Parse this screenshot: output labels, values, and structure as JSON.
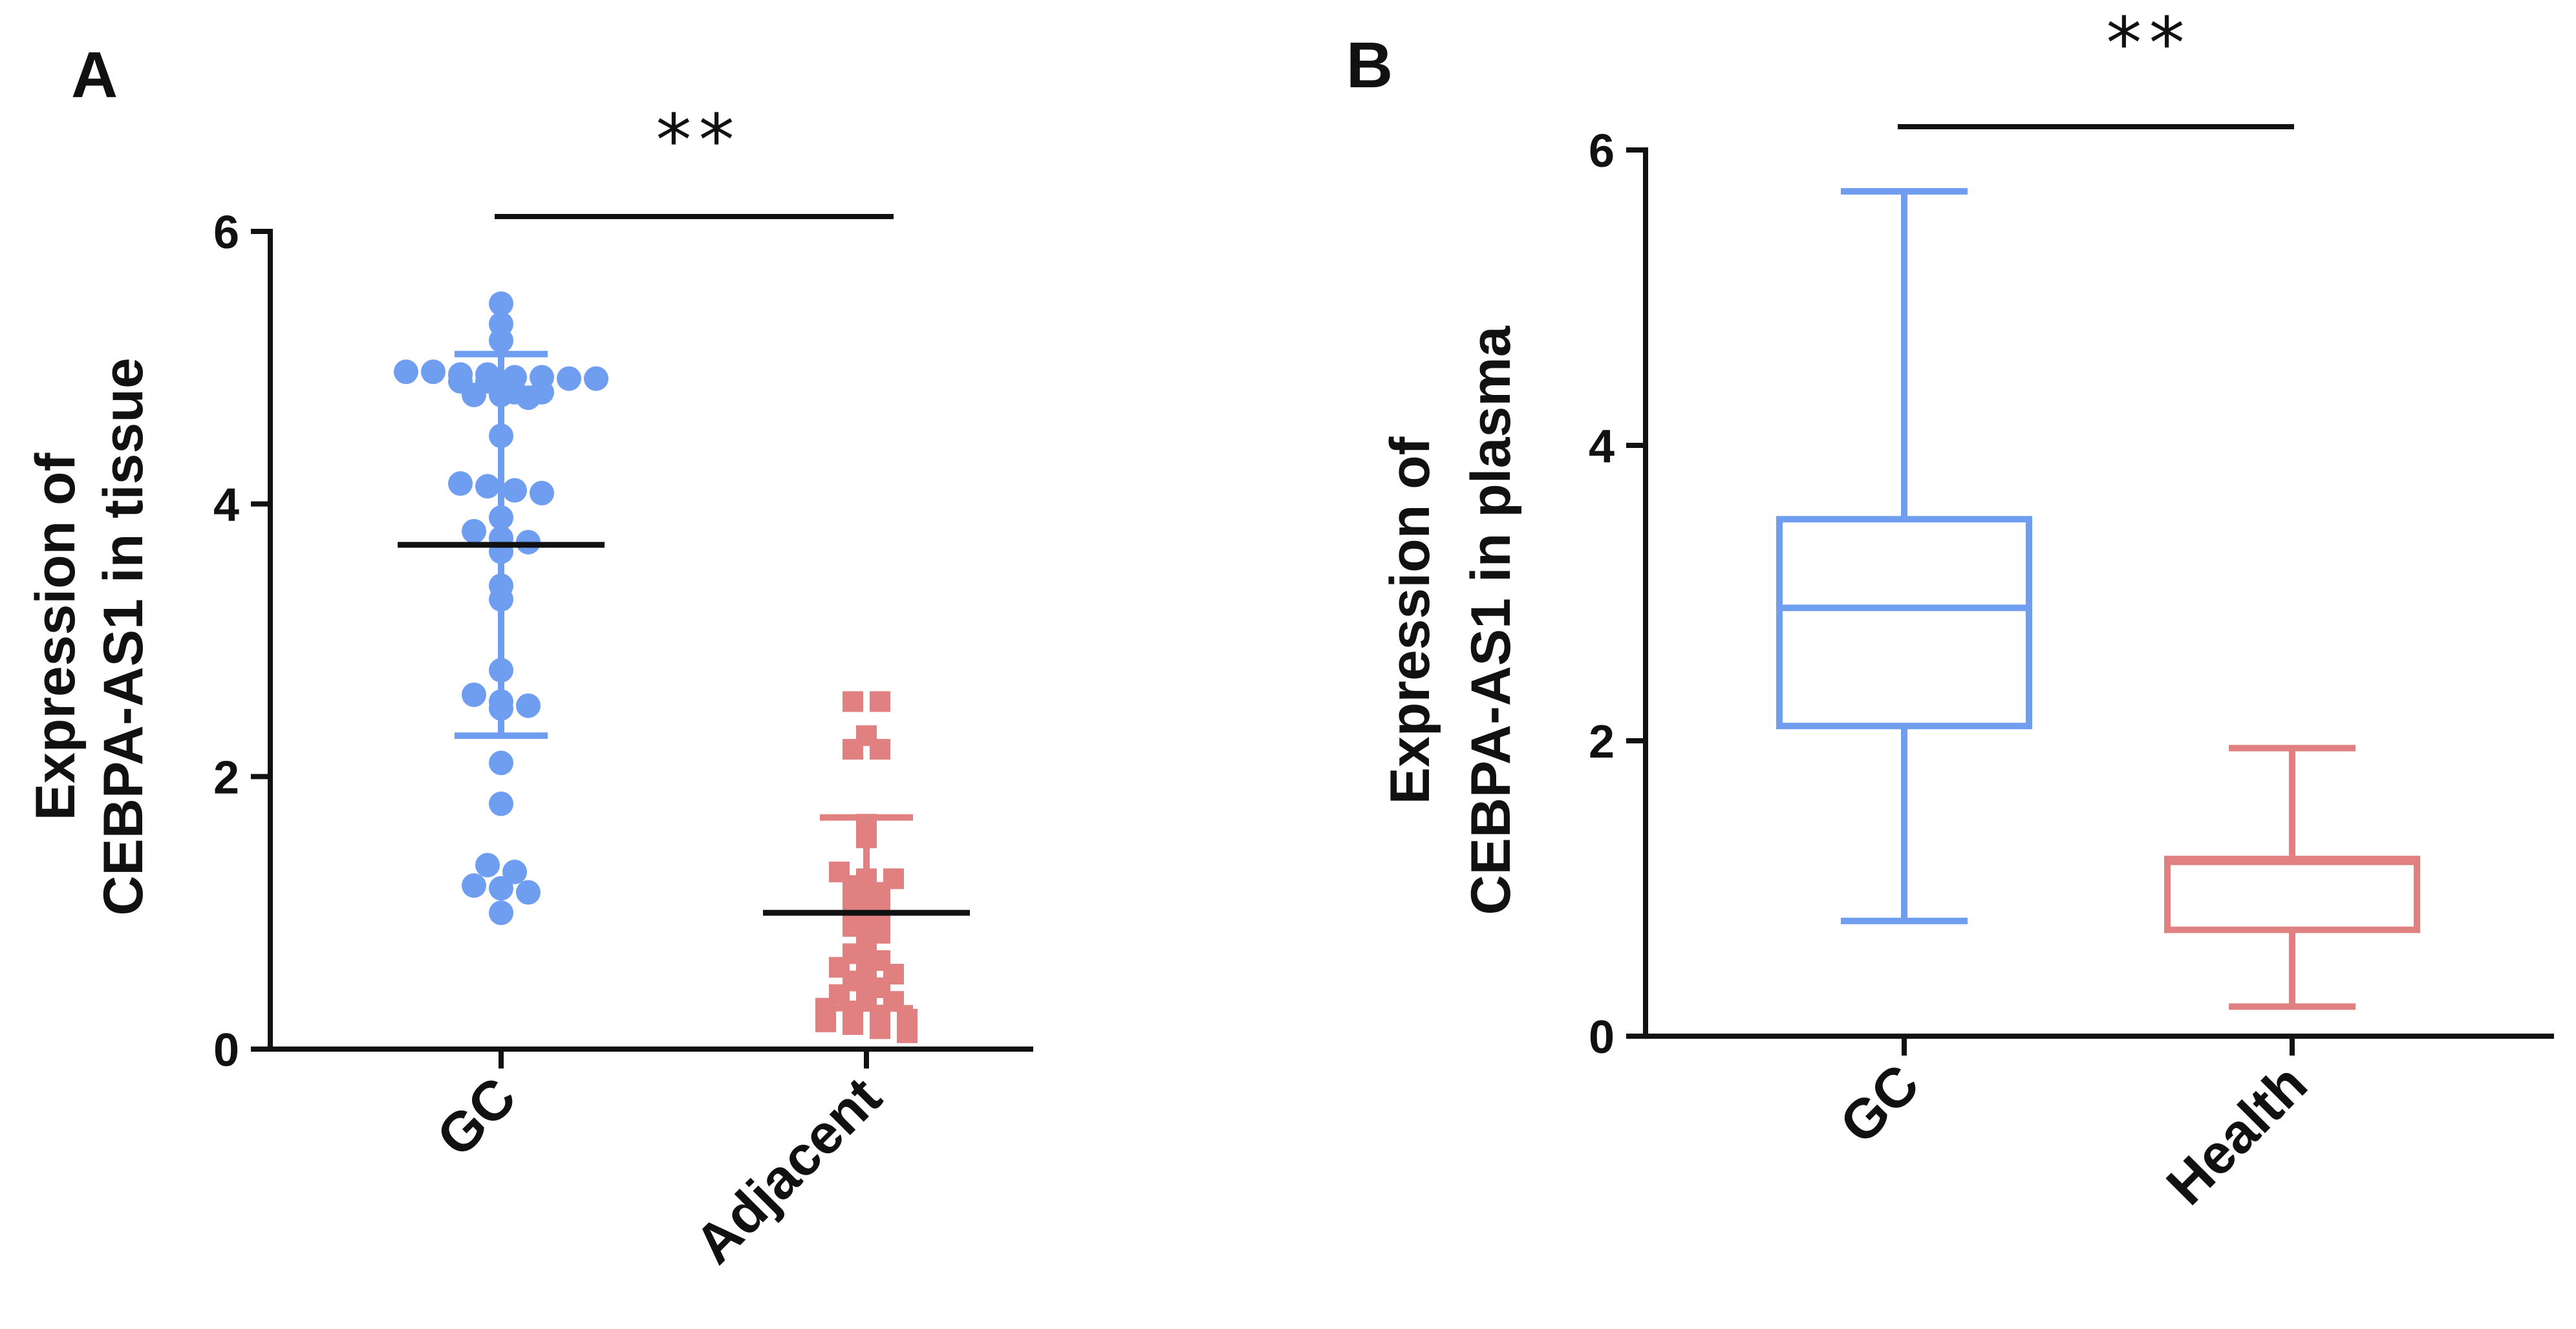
{
  "chart_data": [
    {
      "panel": "A",
      "type": "scatter",
      "ylabel_line1": "Expression of",
      "ylabel_line2": "CEBPA-AS1 in tissue",
      "ylim": [
        0,
        6
      ],
      "yticks": [
        "0",
        "2",
        "4",
        "6"
      ],
      "significance": "**",
      "groups": [
        {
          "name": "GC",
          "color": "#6f9ef0",
          "marker": "circle",
          "mean": 3.7,
          "sd_upper": 5.1,
          "sd_lower": 2.3,
          "values": [
            5.47,
            5.32,
            5.2,
            4.97,
            4.97,
            4.95,
            4.95,
            4.93,
            4.93,
            4.92,
            4.92,
            4.9,
            4.9,
            4.82,
            4.82,
            4.8,
            4.8,
            4.78,
            4.5,
            4.15,
            4.13,
            4.1,
            4.08,
            3.9,
            3.8,
            3.75,
            3.72,
            3.65,
            3.4,
            3.3,
            2.78,
            2.6,
            2.55,
            2.52,
            2.5,
            2.1,
            1.8,
            1.35,
            1.3,
            1.2,
            1.18,
            1.15,
            1.0
          ]
        },
        {
          "name": "Adjacent",
          "color": "#e08080",
          "marker": "square",
          "mean": 1.0,
          "sd_upper": 1.7,
          "sd_lower": 0.3,
          "values": [
            2.55,
            2.55,
            2.3,
            2.2,
            2.2,
            1.65,
            1.55,
            1.3,
            1.25,
            1.25,
            1.2,
            1.15,
            1.1,
            1.05,
            1.0,
            0.95,
            0.9,
            0.85,
            0.8,
            0.7,
            0.65,
            0.6,
            0.55,
            0.55,
            0.5,
            0.45,
            0.4,
            0.35,
            0.35,
            0.3,
            0.28,
            0.25,
            0.22,
            0.2,
            0.18,
            0.15,
            0.12
          ]
        }
      ]
    },
    {
      "panel": "B",
      "type": "box",
      "ylabel_line1": "Expression of",
      "ylabel_line2": "CEBPA-AS1 in plasma",
      "ylim": [
        0,
        6
      ],
      "yticks": [
        "0",
        "2",
        "4",
        "6"
      ],
      "significance": "**",
      "groups": [
        {
          "name": "GC",
          "color": "#6f9ef0",
          "min": 0.78,
          "q1": 2.1,
          "median": 2.9,
          "q3": 3.5,
          "max": 5.72
        },
        {
          "name": "Health",
          "color": "#e08080",
          "min": 0.2,
          "q1": 0.72,
          "median": 1.18,
          "q3": 1.2,
          "max": 1.95
        }
      ]
    }
  ]
}
